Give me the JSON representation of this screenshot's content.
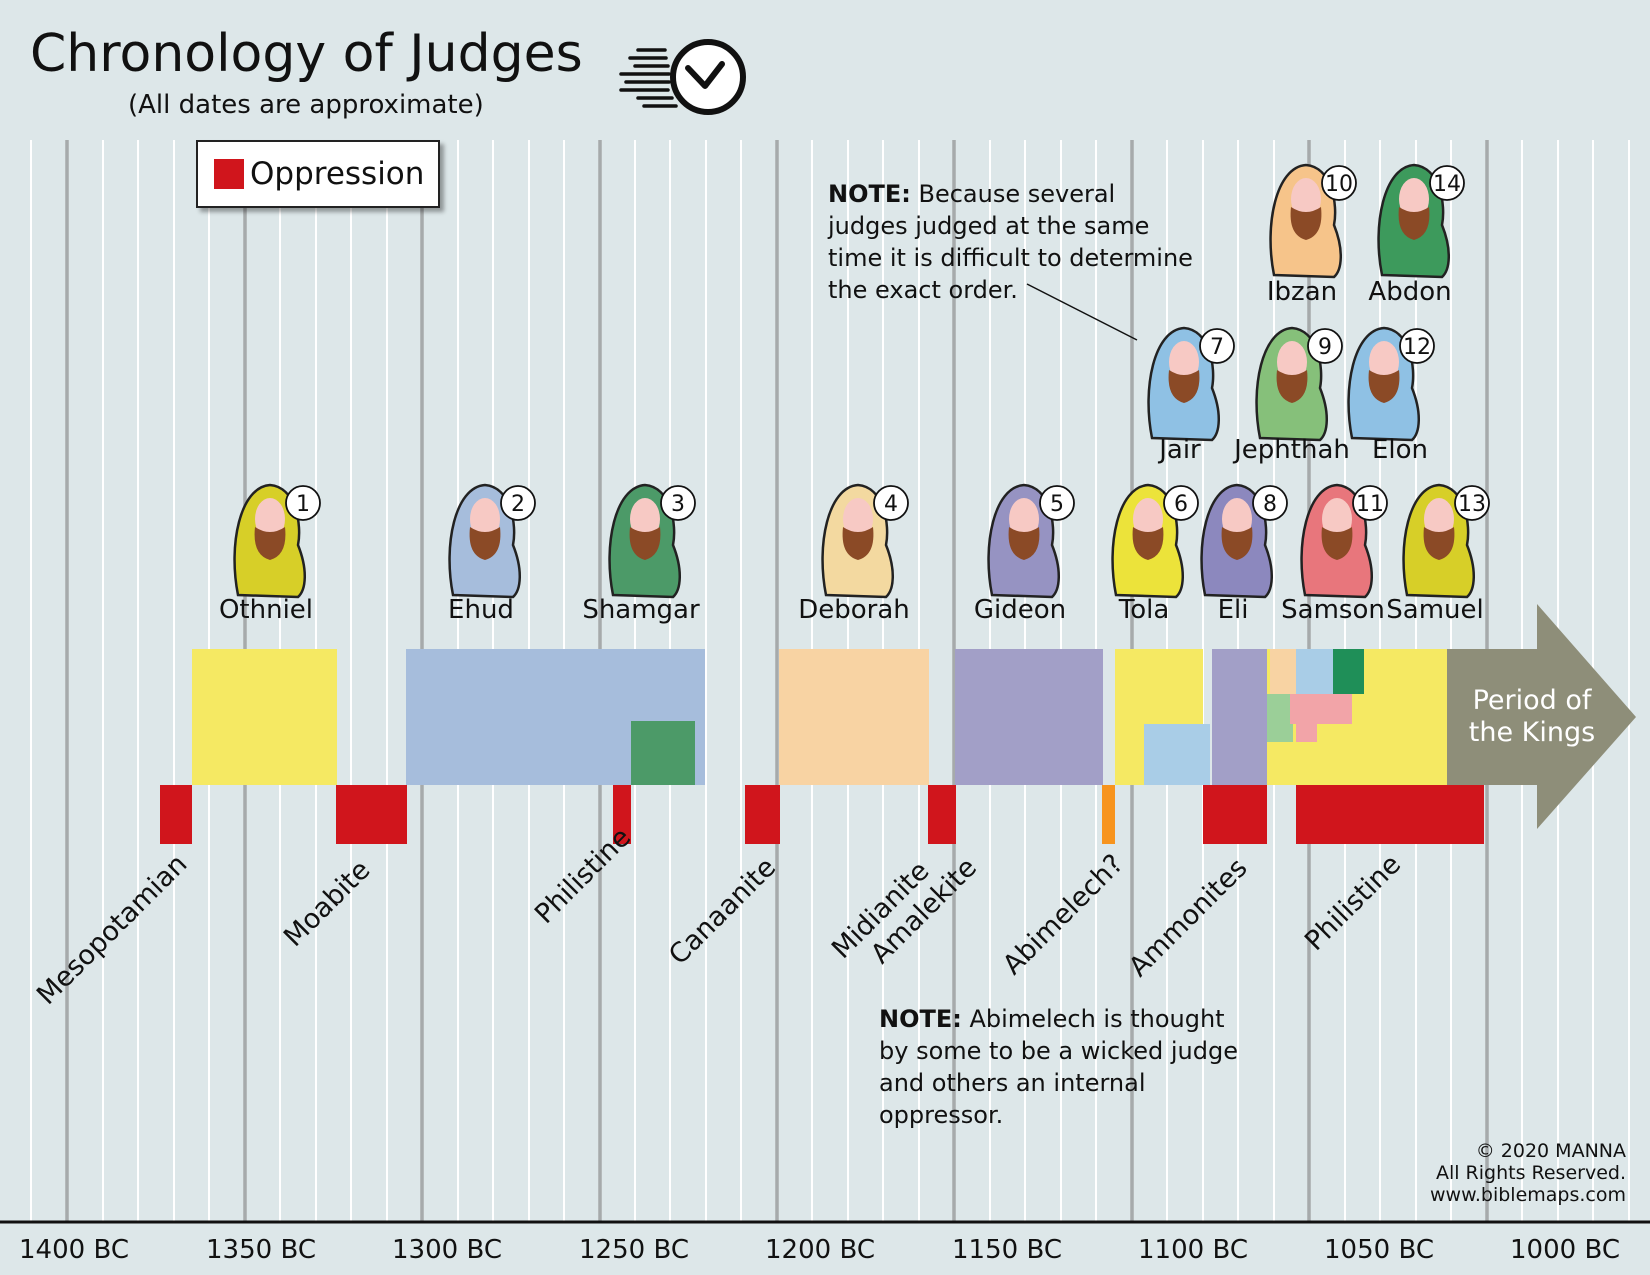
{
  "header": {
    "title": "Chronology of Judges",
    "subtitle": "(All dates are approximate)",
    "clock_icon": "clock-icon"
  },
  "legend": {
    "label": "Oppression",
    "color": "#d0151c"
  },
  "notes": {
    "order_note_bold": "NOTE:",
    "order_note_text": " Because several judges judged at the same time it is difficult to determine the exact order.",
    "abimelech_note_bold": "NOTE:",
    "abimelech_note_text": " Abimelech is thought by some to be a wicked judge and others an internal oppressor."
  },
  "copyright": {
    "line1": "© 2020 MANNA",
    "line2": "All Rights Reserved.",
    "line3": "www.biblemaps.com"
  },
  "timeline": {
    "axis_labels": [
      "1400 BC",
      "1350 BC",
      "1300 BC",
      "1250 BC",
      "1200 BC",
      "1150 BC",
      "1100 BC",
      "1050 BC",
      "1000 BC"
    ],
    "arrow_label_line1": "Period of",
    "arrow_label_line2": "the Kings",
    "colors": {
      "yellow": "#f5e963",
      "blue": "#a6bddc",
      "green": "#4c9a68",
      "peach": "#f8d3a3",
      "purple": "#a29fc7",
      "lightblue": "#a9cde7",
      "lightgreen": "#9bcf98",
      "pink": "#f2a4a8",
      "darkgreen": "#1f8f58",
      "red": "#d0151c",
      "orange": "#f7941d",
      "arrow": "#8e8e79"
    }
  },
  "judges": [
    {
      "num": "1",
      "name": "Othniel",
      "color": "#d7cf28"
    },
    {
      "num": "2",
      "name": "Ehud",
      "color": "#a6bddc"
    },
    {
      "num": "3",
      "name": "Shamgar",
      "color": "#4c9a68"
    },
    {
      "num": "4",
      "name": "Deborah",
      "color": "#f3d9a0"
    },
    {
      "num": "5",
      "name": "Gideon",
      "color": "#9693c2"
    },
    {
      "num": "6",
      "name": "Tola",
      "color": "#ece33a"
    },
    {
      "num": "7",
      "name": "Jair",
      "color": "#8fc1e4"
    },
    {
      "num": "8",
      "name": "Eli",
      "color": "#8c88be"
    },
    {
      "num": "9",
      "name": "Jephthah",
      "color": "#86c07a"
    },
    {
      "num": "10",
      "name": "Ibzan",
      "color": "#f6c48a"
    },
    {
      "num": "11",
      "name": "Samson",
      "color": "#e8767c"
    },
    {
      "num": "12",
      "name": "Elon",
      "color": "#8fc1e4"
    },
    {
      "num": "13",
      "name": "Samuel",
      "color": "#d7cf28"
    },
    {
      "num": "14",
      "name": "Abdon",
      "color": "#3d9a5c"
    }
  ],
  "oppressors": [
    "Mesopotamian",
    "Moabite",
    "Philistine",
    "Canaanite",
    "Midianite",
    "Amalekite",
    "Abimelech?",
    "Ammonites",
    "Philistine"
  ]
}
